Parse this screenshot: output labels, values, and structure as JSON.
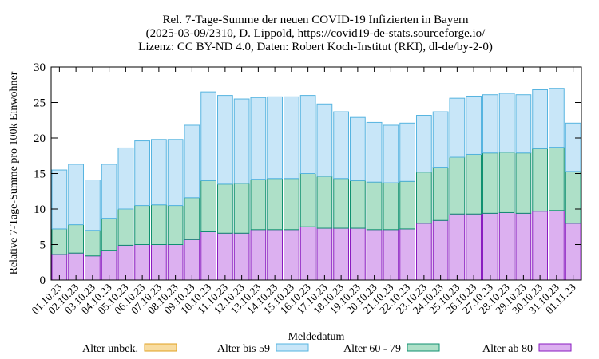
{
  "chart_data": {
    "type": "bar",
    "stacked": true,
    "title_lines": [
      "Rel. 7-Tage-Summe der neuen COVID-19 Infizierten in Bayern",
      "(2025-03-09/2310, D. Lippold, https://covid19-de-stats.sourceforge.io/",
      "Lizenz: CC BY-ND 4.0, Daten: Robert Koch-Institut (RKI), dl-de/by-2-0)"
    ],
    "xlabel": "Meldedatum",
    "ylabel": "Relative 7-Tage-Summe pro 100k Einwohner",
    "ylim": [
      0,
      30
    ],
    "yticks": [
      0,
      5,
      10,
      15,
      20,
      25,
      30
    ],
    "grid": false,
    "legend_position": "bottom",
    "categories": [
      "01.10.23",
      "02.10.23",
      "03.10.23",
      "04.10.23",
      "05.10.23",
      "06.10.23",
      "07.10.23",
      "08.10.23",
      "09.10.23",
      "10.10.23",
      "11.10.23",
      "12.10.23",
      "13.10.23",
      "14.10.23",
      "15.10.23",
      "16.10.23",
      "17.10.23",
      "18.10.23",
      "19.10.23",
      "20.10.23",
      "21.10.23",
      "22.10.23",
      "23.10.23",
      "24.10.23",
      "25.10.23",
      "26.10.23",
      "27.10.23",
      "28.10.23",
      "29.10.23",
      "30.10.23",
      "31.10.23",
      "01.11.23"
    ],
    "series": [
      {
        "name": "Alter ab 80",
        "fill": "#dcb0f0",
        "stroke": "#8a1cc0",
        "values": [
          3.6,
          3.8,
          3.4,
          4.2,
          4.9,
          5.0,
          5.0,
          5.0,
          5.7,
          6.8,
          6.6,
          6.6,
          7.1,
          7.1,
          7.1,
          7.5,
          7.3,
          7.3,
          7.3,
          7.1,
          7.1,
          7.2,
          8.0,
          8.4,
          9.3,
          9.3,
          9.4,
          9.5,
          9.4,
          9.7,
          9.8,
          8.0
        ]
      },
      {
        "name": "Alter 60 - 79",
        "fill": "#aee0c8",
        "stroke": "#109070",
        "values": [
          3.6,
          4.0,
          3.6,
          4.5,
          5.1,
          5.5,
          5.6,
          5.5,
          5.9,
          7.2,
          6.9,
          7.0,
          7.1,
          7.2,
          7.2,
          7.5,
          7.3,
          7.0,
          6.7,
          6.7,
          6.6,
          6.7,
          7.2,
          7.5,
          8.0,
          8.4,
          8.5,
          8.5,
          8.5,
          8.8,
          8.9,
          7.3
        ]
      },
      {
        "name": "Alter bis 59",
        "fill": "#c8e6f8",
        "stroke": "#56b4e0",
        "values": [
          8.3,
          8.5,
          7.1,
          7.6,
          8.6,
          9.1,
          9.2,
          9.3,
          10.2,
          12.5,
          12.5,
          11.9,
          11.5,
          11.5,
          11.5,
          11.0,
          10.2,
          9.4,
          8.9,
          8.4,
          8.1,
          8.2,
          8.0,
          7.8,
          8.3,
          8.2,
          8.2,
          8.3,
          8.2,
          8.3,
          8.3,
          6.8
        ]
      },
      {
        "name": "Alter unbek.",
        "fill": "#f8dca0",
        "stroke": "#e0a020",
        "values": [
          0,
          0,
          0,
          0,
          0,
          0,
          0,
          0,
          0,
          0,
          0,
          0,
          0,
          0,
          0,
          0,
          0,
          0,
          0,
          0,
          0,
          0,
          0,
          0,
          0,
          0,
          0,
          0,
          0,
          0,
          0,
          0
        ]
      }
    ],
    "legend_order": [
      "Alter unbek.",
      "Alter bis 59",
      "Alter 60 - 79",
      "Alter ab 80"
    ]
  }
}
